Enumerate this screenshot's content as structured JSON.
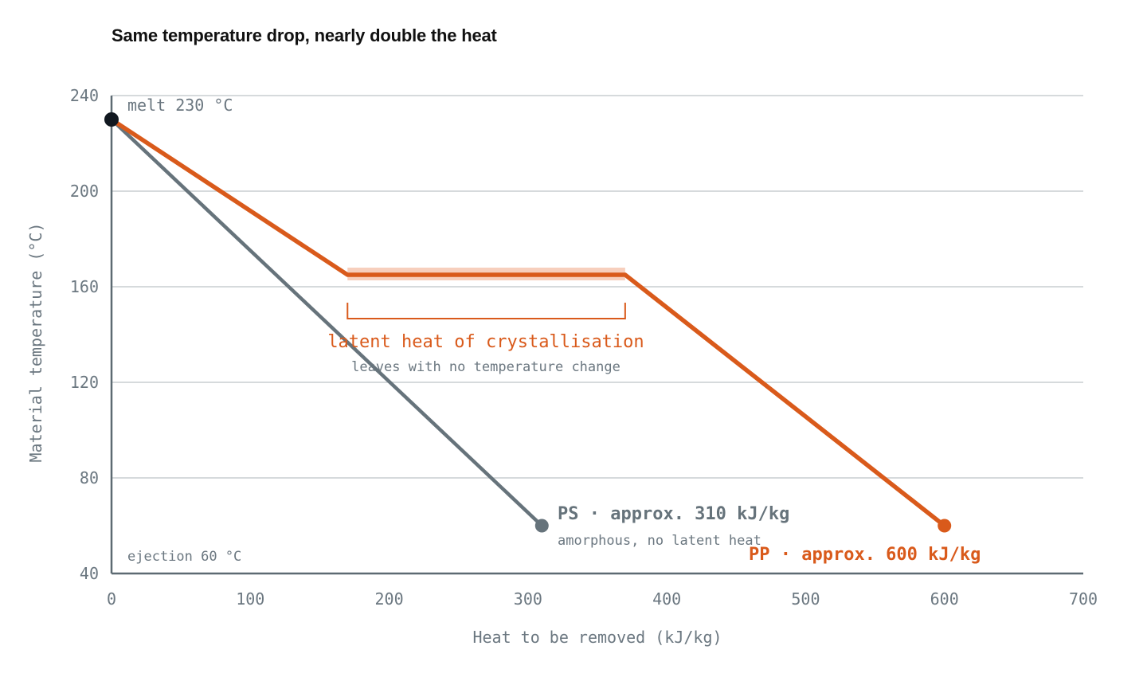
{
  "colors": {
    "pp": "#d95a1b",
    "ps": "#66737b",
    "pp_highlight": "#f7cfbd",
    "start_point": "#111820",
    "grid": "#c9cdd0",
    "axis": "#5d6a72",
    "muted_text": "#6b7780"
  },
  "chart_data": {
    "type": "line",
    "title": "Same temperature drop, nearly double the heat",
    "xlabel": "Heat to be removed (kJ/kg)",
    "ylabel": "Material temperature (°C)",
    "xlim": [
      0,
      700
    ],
    "ylim": [
      40,
      240
    ],
    "x_ticks": [
      0,
      100,
      200,
      300,
      400,
      500,
      600,
      700
    ],
    "y_ticks": [
      40,
      80,
      120,
      160,
      200,
      240
    ],
    "grid": true,
    "series": [
      {
        "key": "pp",
        "points": [
          [
            0,
            230
          ],
          [
            170,
            165
          ],
          [
            370,
            165
          ],
          [
            600,
            60
          ]
        ]
      },
      {
        "key": "ps",
        "points": [
          [
            0,
            230
          ],
          [
            310,
            60
          ]
        ]
      }
    ],
    "annotations": {
      "melt": "melt 230 °C",
      "ejection": "ejection 60 °C",
      "latent_title": "latent heat of crystallisation",
      "latent_subtitle": "leaves with no temperature change",
      "latent_range": [
        170,
        370
      ],
      "ps_label": "PS · approx. 310 kJ/kg",
      "ps_sublabel": "amorphous, no latent heat",
      "pp_label": "PP · approx. 600 kJ/kg"
    }
  }
}
